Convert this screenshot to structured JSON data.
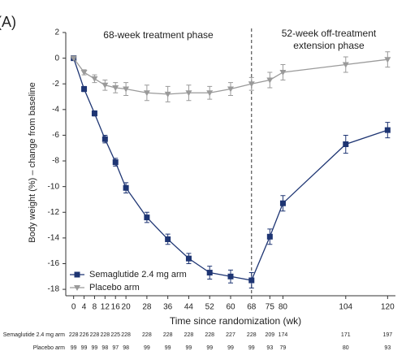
{
  "chart_data": {
    "type": "line",
    "panel_label": "(A)",
    "phase_labels": [
      "68-week treatment phase",
      "52-week off-treatment",
      "extension phase"
    ],
    "x_label": "Time since randomization (wk)",
    "y_label": "Body weight (%) – change from baseline",
    "x": [
      0,
      4,
      8,
      12,
      16,
      20,
      28,
      36,
      44,
      52,
      60,
      68,
      75,
      80,
      104,
      120
    ],
    "xlim": [
      -3,
      123
    ],
    "xticks": [
      0,
      4,
      8,
      12,
      16,
      20,
      28,
      36,
      44,
      52,
      60,
      68,
      75,
      80,
      104,
      120
    ],
    "ylim": [
      -18.5,
      2
    ],
    "yticks": [
      2,
      0,
      -2,
      -4,
      -6,
      -8,
      -10,
      -12,
      -14,
      -16,
      -18
    ],
    "divider_x": 68,
    "legend": "lower-left",
    "series": [
      {
        "name": "Semaglutide 2.4 mg arm",
        "color": "#1e3573",
        "marker": "square",
        "values": [
          0,
          -2.4,
          -4.3,
          -6.3,
          -8.1,
          -10.1,
          -12.4,
          -14.1,
          -15.6,
          -16.7,
          -17.0,
          -17.3,
          -13.9,
          -11.3,
          -6.7,
          -5.6
        ],
        "errors": [
          0,
          0.2,
          0.2,
          0.3,
          0.3,
          0.4,
          0.4,
          0.4,
          0.4,
          0.5,
          0.5,
          0.6,
          0.6,
          0.6,
          0.7,
          0.6
        ]
      },
      {
        "name": "Placebo arm",
        "color": "#9a9a9a",
        "marker": "triangle",
        "values": [
          0,
          -1.1,
          -1.6,
          -2.1,
          -2.3,
          -2.4,
          -2.7,
          -2.8,
          -2.7,
          -2.7,
          -2.4,
          -2.0,
          -1.7,
          -1.1,
          -0.5,
          -0.1
        ],
        "errors": [
          0,
          0.2,
          0.3,
          0.4,
          0.4,
          0.5,
          0.6,
          0.6,
          0.6,
          0.5,
          0.5,
          0.5,
          0.6,
          0.6,
          0.6,
          0.6
        ]
      }
    ],
    "n_at_risk": [
      {
        "name": "Semaglutide 2.4 mg arm",
        "values": [
          228,
          226,
          228,
          228,
          225,
          228,
          228,
          228,
          228,
          228,
          227,
          228,
          209,
          174,
          171,
          197
        ]
      },
      {
        "name": "Placebo arm",
        "values": [
          99,
          99,
          99,
          98,
          97,
          98,
          99,
          99,
          99,
          99,
          99,
          99,
          93,
          79,
          80,
          93
        ]
      }
    ]
  }
}
